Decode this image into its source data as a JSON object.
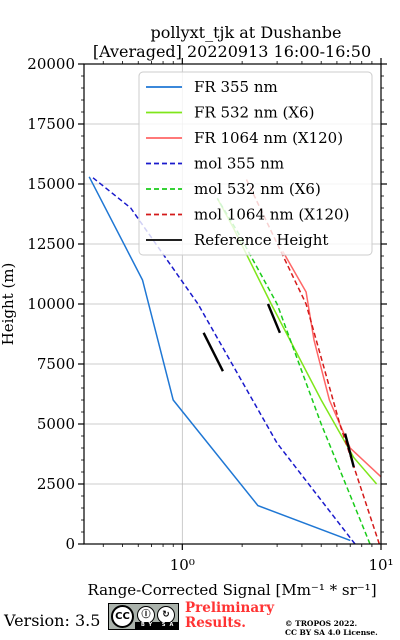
{
  "chart_data": {
    "type": "line",
    "title": "pollyxt_tjk at Dushanbe",
    "subtitle": "[Averaged] 20220913 16:00-16:50",
    "xlabel": "Range-Corrected Signal [Mm⁻¹ * sr⁻¹]",
    "ylabel": "Height (m)",
    "xscale": "log",
    "xlim": [
      0.32,
      10
    ],
    "ylim": [
      0,
      20000
    ],
    "xticks": [
      1,
      10
    ],
    "xtick_labels": [
      "10⁰",
      "10¹"
    ],
    "yticks": [
      0,
      2500,
      5000,
      7500,
      10000,
      12500,
      15000,
      17500,
      20000
    ],
    "ytick_labels": [
      "0",
      "2500",
      "5000",
      "7500",
      "10000",
      "12500",
      "15000",
      "17500",
      "20000"
    ],
    "grid": true,
    "legend_position": "top-right",
    "series": [
      {
        "name": "FR 355 nm",
        "color": "#1f77d4",
        "style": "solid",
        "x": [
          7.0,
          2.4,
          0.9,
          0.63,
          0.34
        ],
        "y": [
          150,
          1600,
          6000,
          11000,
          15300
        ]
      },
      {
        "name": "FR 532 nm (X6)",
        "color": "#7fe61a",
        "style": "solid",
        "x": [
          9.5,
          7.3,
          5.0,
          2.8,
          1.8,
          1.5
        ],
        "y": [
          2500,
          3600,
          6000,
          10000,
          13200,
          14400
        ]
      },
      {
        "name": "FR 1064 nm (X120)",
        "color": "#ff6666",
        "style": "solid",
        "x": [
          10.0,
          7.0,
          5.5,
          4.6,
          4.2,
          3.2
        ],
        "y": [
          2800,
          4000,
          6000,
          8500,
          10500,
          12200
        ]
      },
      {
        "name": "mol 355 nm",
        "color": "#1a1acc",
        "style": "dashed",
        "x": [
          7.4,
          3.0,
          1.2,
          0.55,
          0.35
        ],
        "y": [
          0,
          4200,
          10000,
          14000,
          15300
        ]
      },
      {
        "name": "mol 532 nm (X6)",
        "color": "#1acc1a",
        "style": "dashed",
        "x": [
          8.8,
          5.0,
          3.0,
          1.9,
          1.5
        ],
        "y": [
          0,
          5000,
          10000,
          13000,
          14400
        ]
      },
      {
        "name": "mol 1064 nm (X120)",
        "color": "#d41a1a",
        "style": "dashed",
        "x": [
          9.8,
          6.2,
          4.2,
          2.1
        ],
        "y": [
          0,
          5000,
          10000,
          15200
        ]
      },
      {
        "name": "Reference Height",
        "color": "#000000",
        "style": "solid",
        "segments": [
          {
            "x": [
              1.28,
              1.6
            ],
            "y": [
              8800,
              7200
            ]
          },
          {
            "x": [
              2.7,
              3.1
            ],
            "y": [
              10000,
              8800
            ]
          },
          {
            "x": [
              6.6,
              7.3
            ],
            "y": [
              4600,
              3200
            ]
          }
        ]
      }
    ]
  },
  "footer": {
    "version": "Version: 3.5",
    "license_badge": [
      "cc",
      "by",
      "sa"
    ],
    "badge_icons": {
      "cc": "CC",
      "by": "Ⓘ",
      "sa": "↻",
      "strip": "BY SA"
    },
    "preliminary": "Preliminary Results.",
    "copyright_line1": "© TROPOS 2022.",
    "copyright_line2": "CC BY SA 4.0 License."
  }
}
